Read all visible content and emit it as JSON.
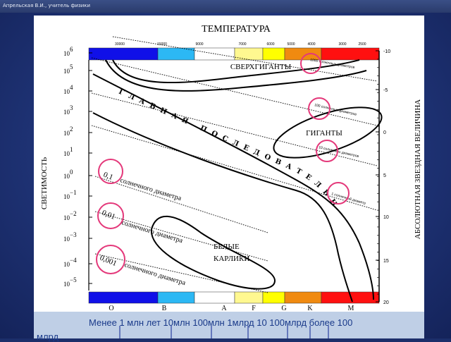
{
  "window_title": "Апрельская В.И., учитель физики",
  "diagram": {
    "title": "ТЕМПЕРАТУРА",
    "y_left_label": "СВЕТИМОСТЬ",
    "y_right_label": "АБСОЛЮТНАЯ ЗВЕЗДНАЯ ВЕЛИЧИНА",
    "temperature_ticks": [
      "30000",
      "15000",
      "9000",
      "7000",
      "6000",
      "5000",
      "4000",
      "3000",
      "2500"
    ],
    "luminosity_ticks": [
      {
        "base": "10",
        "exp": "6"
      },
      {
        "base": "10",
        "exp": "5"
      },
      {
        "base": "10",
        "exp": "4"
      },
      {
        "base": "10",
        "exp": "3"
      },
      {
        "base": "10",
        "exp": "2"
      },
      {
        "base": "10",
        "exp": "1"
      },
      {
        "base": "10",
        "exp": "0"
      },
      {
        "base": "10",
        "exp": "−1"
      },
      {
        "base": "10",
        "exp": "−2"
      },
      {
        "base": "10",
        "exp": "−3"
      },
      {
        "base": "10",
        "exp": "−4"
      },
      {
        "base": "10",
        "exp": "−5"
      }
    ],
    "magnitude_ticks": [
      "-10",
      "-5",
      "0",
      "5",
      "10",
      "15",
      "20"
    ],
    "spectral_classes": [
      "O",
      "B",
      "A",
      "F",
      "G",
      "K",
      "M"
    ],
    "color_bar": [
      "#1010e8",
      "#2cb8f4",
      "#ffffff",
      "#fff890",
      "#ffff00",
      "#f08a10",
      "#ff1010"
    ],
    "regions": {
      "supergiants": "СВЕРХГИГАНТЫ",
      "giants": "ГИГАНТЫ",
      "main_sequence": "ГЛАВНАЯ ПОСЛЕДОВАТЕЛЬНОСТЬ",
      "white_dwarfs_line1": "БЕЛЫЕ",
      "white_dwarfs_line2": "КАРЛИКИ"
    },
    "diameter_lines": {
      "d1000": "1000 солнечных диаметров",
      "d100": "100 солнечных диаметров",
      "d10": "10 солнечных диаметров",
      "d1": "1 солнечный диаметр",
      "d01_value": "0,1",
      "d001_value": "0,01",
      "d0001_value": "0,001",
      "small_caption": "солнечного диаметра"
    }
  },
  "bottom_caption": {
    "line1": "Менее 1 млн лет   10млн    100млн 1млрд  10     100млрд   более 100",
    "line2": "млрд"
  }
}
